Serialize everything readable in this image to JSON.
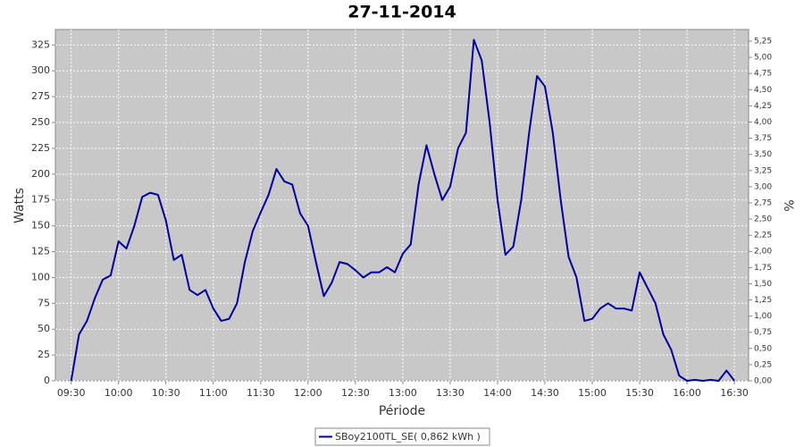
{
  "chart_data": {
    "type": "line",
    "title": "27-11-2014",
    "x_label": "Période",
    "y_label": "Watts",
    "y2_label": "%",
    "x": [
      "09:30",
      "09:35",
      "09:40",
      "09:45",
      "09:50",
      "09:55",
      "10:00",
      "10:05",
      "10:10",
      "10:15",
      "10:20",
      "10:25",
      "10:30",
      "10:35",
      "10:40",
      "10:45",
      "10:50",
      "10:55",
      "11:00",
      "11:05",
      "11:10",
      "11:15",
      "11:20",
      "11:25",
      "11:30",
      "11:35",
      "11:40",
      "11:45",
      "11:50",
      "11:55",
      "12:00",
      "12:05",
      "12:10",
      "12:15",
      "12:20",
      "12:25",
      "12:30",
      "12:35",
      "12:40",
      "12:45",
      "12:50",
      "12:55",
      "13:00",
      "13:05",
      "13:10",
      "13:15",
      "13:20",
      "13:25",
      "13:30",
      "13:35",
      "13:40",
      "13:45",
      "13:50",
      "13:55",
      "14:00",
      "14:05",
      "14:10",
      "14:15",
      "14:20",
      "14:25",
      "14:30",
      "14:35",
      "14:40",
      "14:45",
      "14:50",
      "14:55",
      "15:00",
      "15:05",
      "15:10",
      "15:15",
      "15:20",
      "15:25",
      "15:30",
      "15:35",
      "15:40",
      "15:45",
      "15:50",
      "15:55",
      "16:00",
      "16:05",
      "16:10",
      "16:15",
      "16:20",
      "16:25",
      "16:30"
    ],
    "series": [
      {
        "name": "SBoy2100TL_SE( 0,862 kWh )",
        "color": "#0000a0",
        "values": [
          0,
          45,
          58,
          80,
          98,
          102,
          135,
          128,
          150,
          178,
          182,
          180,
          155,
          117,
          122,
          88,
          83,
          88,
          70,
          58,
          60,
          75,
          115,
          145,
          163,
          180,
          205,
          193,
          190,
          162,
          150,
          115,
          82,
          95,
          115,
          113,
          107,
          100,
          105,
          105,
          110,
          105,
          123,
          132,
          190,
          228,
          200,
          175,
          188,
          225,
          240,
          330,
          310,
          250,
          175,
          122,
          130,
          175,
          240,
          295,
          285,
          240,
          175,
          120,
          100,
          58,
          60,
          70,
          75,
          70,
          70,
          68,
          105,
          90,
          75,
          45,
          30,
          5,
          0,
          1,
          0,
          1,
          0,
          10,
          0
        ]
      }
    ],
    "xlim": [
      "09:20",
      "16:39"
    ],
    "xticks": [
      "09:30",
      "10:00",
      "10:30",
      "11:00",
      "11:30",
      "12:00",
      "12:30",
      "13:00",
      "13:30",
      "14:00",
      "14:30",
      "15:00",
      "15:30",
      "16:00",
      "16:30"
    ],
    "ylim": [
      0,
      340
    ],
    "yticks": [
      0,
      25,
      50,
      75,
      100,
      125,
      150,
      175,
      200,
      225,
      250,
      275,
      300,
      325
    ],
    "y2lim": [
      0,
      5.43
    ],
    "y2ticks": [
      {
        "value": 0,
        "label": "0,00"
      },
      {
        "value": 0.25,
        "label": "0,25"
      },
      {
        "value": 0.5,
        "label": "0,50"
      },
      {
        "value": 0.75,
        "label": "0,75"
      },
      {
        "value": 1,
        "label": "1,00"
      },
      {
        "value": 1.25,
        "label": "1,25"
      },
      {
        "value": 1.5,
        "label": "1,50"
      },
      {
        "value": 1.75,
        "label": "1,75"
      },
      {
        "value": 2,
        "label": "2,00"
      },
      {
        "value": 2.25,
        "label": "2,25"
      },
      {
        "value": 2.5,
        "label": "2,50"
      },
      {
        "value": 2.75,
        "label": "2,75"
      },
      {
        "value": 3,
        "label": "3,00"
      },
      {
        "value": 3.25,
        "label": "3,25"
      },
      {
        "value": 3.5,
        "label": "3,50"
      },
      {
        "value": 3.75,
        "label": "3,75"
      },
      {
        "value": 4,
        "label": "4,00"
      },
      {
        "value": 4.25,
        "label": "4,25"
      },
      {
        "value": 4.5,
        "label": "4,50"
      },
      {
        "value": 4.75,
        "label": "4,75"
      },
      {
        "value": 5,
        "label": "5,00"
      },
      {
        "value": 5.25,
        "label": "5,25"
      }
    ],
    "grid": true
  }
}
